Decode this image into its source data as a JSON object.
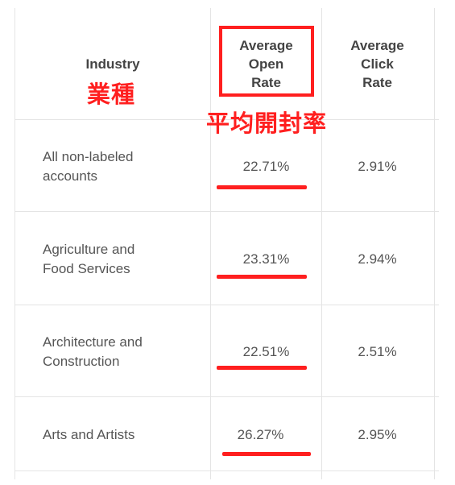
{
  "table": {
    "headers": {
      "industry": "Industry",
      "open_rate": [
        "Average",
        "Open",
        "Rate"
      ],
      "click_rate": [
        "Average",
        "Click",
        "Rate"
      ]
    },
    "rows": [
      {
        "industry": [
          "All non-labeled",
          "accounts"
        ],
        "open_rate": "22.71%",
        "click_rate": "2.91%"
      },
      {
        "industry": [
          "Agriculture and",
          "Food Services"
        ],
        "open_rate": "23.31%",
        "click_rate": "2.94%"
      },
      {
        "industry": [
          "Architecture and",
          "Construction"
        ],
        "open_rate": "22.51%",
        "click_rate": "2.51%"
      },
      {
        "industry": [
          "Arts and Artists"
        ],
        "open_rate": "26.27%",
        "click_rate": "2.95%"
      }
    ]
  },
  "annotations": {
    "industry_label": "業種",
    "open_rate_label": "平均開封率",
    "color": "#ff1f1f"
  }
}
